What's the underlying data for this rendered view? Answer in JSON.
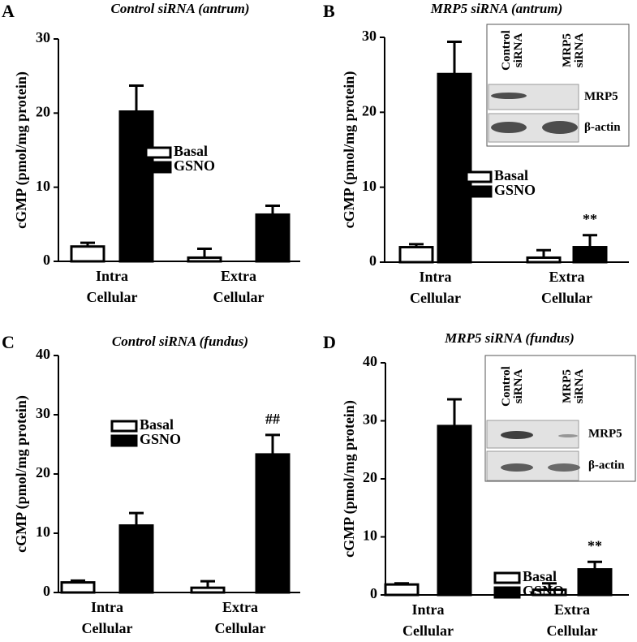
{
  "chart_data": [
    {
      "type": "bar",
      "panel": "A",
      "title": "Control siRNA (antrum)",
      "ylabel": "cGMP (pmol/mg protein)",
      "categories": [
        "Intra Cellular",
        "Extra Cellular"
      ],
      "series": [
        {
          "name": "Basal",
          "color": "#ffffff",
          "values": [
            2.0,
            0.5
          ],
          "errors": [
            0.5,
            1.2
          ]
        },
        {
          "name": "GSNO",
          "color": "#000000",
          "values": [
            20.2,
            6.3
          ],
          "errors": [
            3.5,
            1.2
          ]
        }
      ],
      "ylim": [
        0,
        30
      ],
      "yticks": [
        0,
        10,
        20,
        30
      ]
    },
    {
      "type": "bar",
      "panel": "B",
      "title": "MRP5 siRNA (antrum)",
      "ylabel": "cGMP (pmol/mg protein)",
      "categories": [
        "Intra Cellular",
        "Extra Cellular"
      ],
      "series": [
        {
          "name": "Basal",
          "color": "#ffffff",
          "values": [
            2.0,
            0.6
          ],
          "errors": [
            0.4,
            1.0
          ]
        },
        {
          "name": "GSNO",
          "color": "#000000",
          "values": [
            25.1,
            2.0
          ],
          "errors": [
            4.3,
            1.6
          ]
        }
      ],
      "annotations": [
        "**"
      ],
      "inset": {
        "columns": [
          "Control siRNA",
          "MRP5 siRNA"
        ],
        "rows": [
          "MRP5",
          "β-actin"
        ]
      },
      "ylim": [
        0,
        30
      ],
      "yticks": [
        0,
        10,
        20,
        30
      ]
    },
    {
      "type": "bar",
      "panel": "C",
      "title": "Control siRNA (fundus)",
      "ylabel": "cGMP (pmol/mg protein)",
      "categories": [
        "Intra Cellular",
        "Extra Cellular"
      ],
      "series": [
        {
          "name": "Basal",
          "color": "#ffffff",
          "values": [
            1.7,
            0.8
          ],
          "errors": [
            0.3,
            1.1
          ]
        },
        {
          "name": "GSNO",
          "color": "#000000",
          "values": [
            11.3,
            23.3
          ],
          "errors": [
            2.1,
            3.3
          ]
        }
      ],
      "annotations": [
        "##"
      ],
      "ylim": [
        0,
        40
      ],
      "yticks": [
        0,
        10,
        20,
        30,
        40
      ]
    },
    {
      "type": "bar",
      "panel": "D",
      "title": "MRP5 siRNA (fundus)",
      "ylabel": "cGMP (pmol/mg protein)",
      "categories": [
        "Intra Cellular",
        "Extra Cellular"
      ],
      "series": [
        {
          "name": "Basal",
          "color": "#ffffff",
          "values": [
            1.8,
            0.9
          ],
          "errors": [
            0.2,
            1.1
          ]
        },
        {
          "name": "GSNO",
          "color": "#000000",
          "values": [
            29.1,
            4.4
          ],
          "errors": [
            4.6,
            1.3
          ]
        }
      ],
      "annotations": [
        "**"
      ],
      "inset": {
        "columns": [
          "Control siRNA",
          "MRP5 siRNA"
        ],
        "rows": [
          "MRP5",
          "β-actin"
        ]
      },
      "ylim": [
        0,
        40
      ],
      "yticks": [
        0,
        10,
        20,
        30,
        40
      ]
    }
  ]
}
